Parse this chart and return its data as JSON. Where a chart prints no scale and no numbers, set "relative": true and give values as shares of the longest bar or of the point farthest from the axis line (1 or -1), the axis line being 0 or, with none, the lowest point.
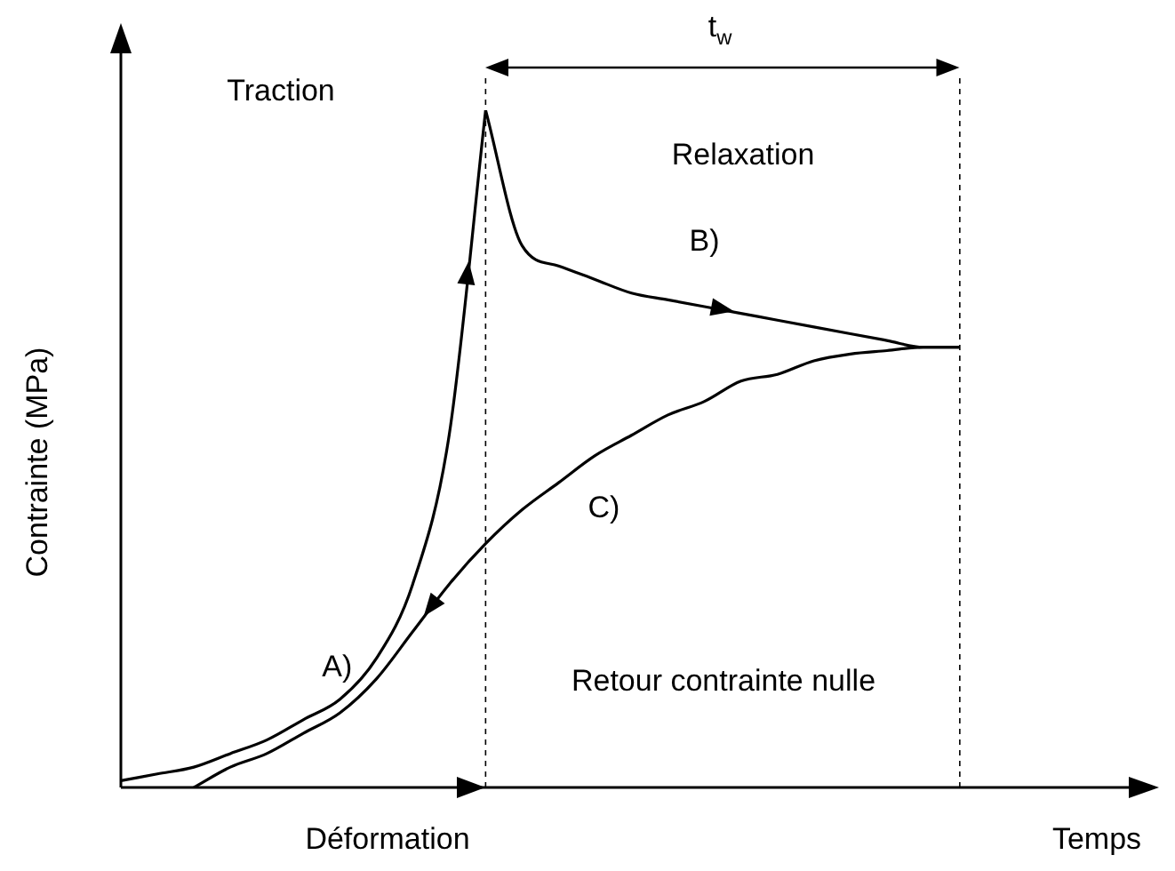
{
  "chart_data": {
    "type": "line",
    "relative": true,
    "ylabel": "Contrainte (MPa)",
    "xlabel": "Temps",
    "legend": false,
    "grid": false,
    "marker": "none",
    "annotations": [
      "Traction",
      "Relaxation",
      "Retour contrainte nulle",
      "t$_{w}$",
      "Déformation"
    ],
    "categories": [
      null,
      null,
      null,
      null,
      null,
      null,
      null,
      null,
      null,
      null,
      null,
      null,
      null,
      null,
      null,
      null,
      null,
      null,
      null,
      null,
      null,
      null,
      null,
      null,
      null,
      null,
      null,
      null
    ],
    "series": [
      {
        "name": "A)",
        "color": "#000000",
        "values": [
          0.01,
          0.02,
          0.03,
          0.05,
          0.07,
          0.1,
          0.13,
          0.19,
          0.3,
          0.52,
          1,
          null,
          null,
          null,
          null,
          null,
          null,
          null,
          null,
          null,
          null,
          null,
          null,
          null,
          null,
          null,
          null,
          null
        ]
      },
      {
        "name": "B)",
        "color": "#000000",
        "values": [
          null,
          null,
          null,
          null,
          null,
          null,
          null,
          null,
          null,
          null,
          1,
          0.8,
          0.77,
          0.75,
          0.73,
          0.72,
          0.71,
          0.7,
          0.69,
          0.68,
          0.67,
          0.66,
          0.65,
          0.65,
          null,
          null,
          null,
          null
        ]
      },
      {
        "name": "C)",
        "color": "#000000",
        "values": [
          null,
          null,
          0,
          0.03,
          0.05,
          0.08,
          0.11,
          0.16,
          0.23,
          0.3,
          0.36,
          0.41,
          0.45,
          0.49,
          0.52,
          0.55,
          0.57,
          0.6,
          0.61,
          0.63,
          0.64,
          0.645,
          0.65,
          0.65,
          null,
          null,
          null,
          null
        ]
      }
    ]
  }
}
